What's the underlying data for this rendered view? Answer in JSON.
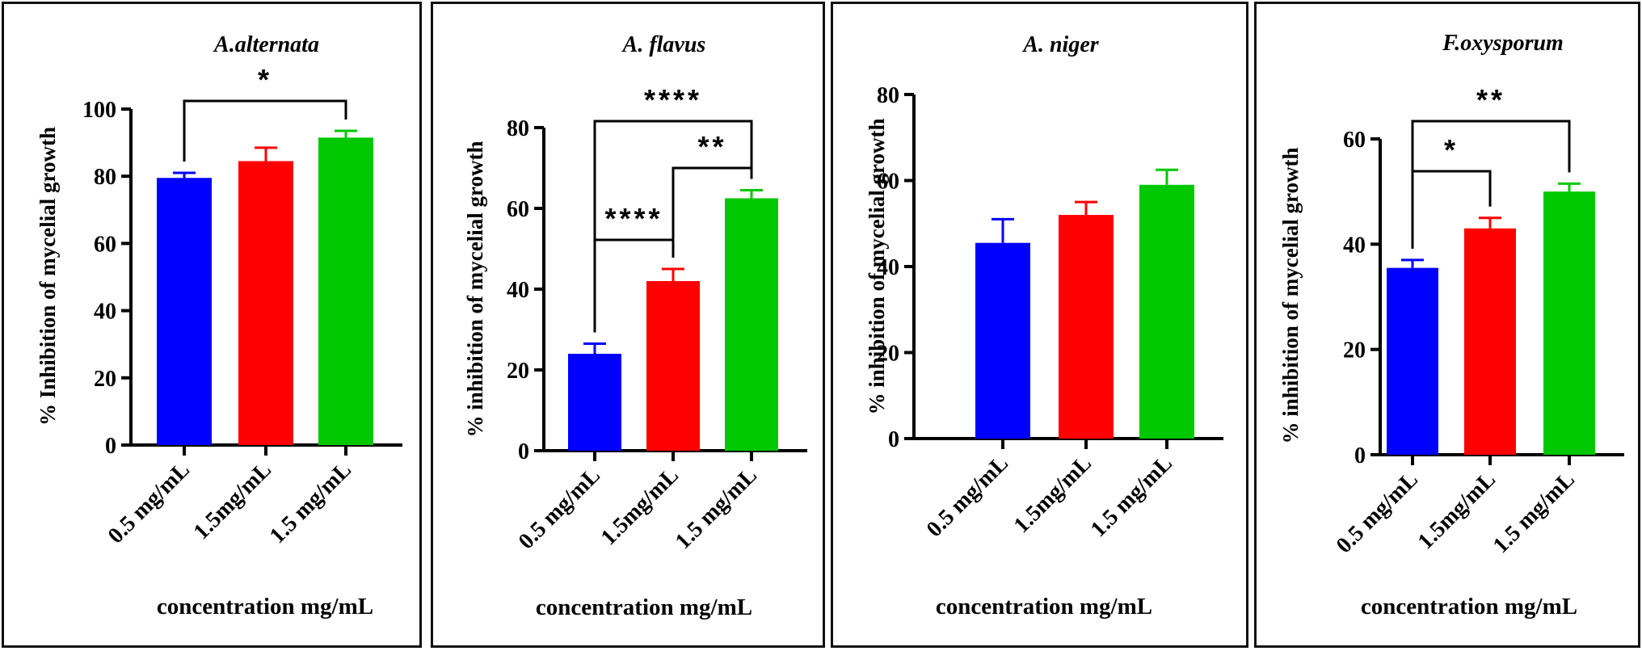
{
  "colors": {
    "blue": "#0000ff",
    "red": "#ff0000",
    "green": "#00c800",
    "axis": "#000000"
  },
  "chart_data": [
    {
      "type": "bar",
      "title": "A.alternata",
      "ylabel": "% Inhibition of mycelial growth",
      "xlabel": "concentration mg/mL",
      "categories": [
        "0.5 mg/mL",
        "1.5mg/mL",
        "1.5 mg/mL"
      ],
      "values": [
        79.5,
        84.5,
        91.5
      ],
      "errors": [
        1.5,
        4,
        2
      ],
      "ylim": [
        0,
        100
      ],
      "yticks": [
        0,
        20,
        40,
        60,
        80,
        100
      ],
      "bar_colors": [
        "#0000ff",
        "#ff0000",
        "#00c800"
      ],
      "significance": [
        {
          "from": 0,
          "to": 2,
          "label": "*"
        }
      ]
    },
    {
      "type": "bar",
      "title": "A. flavus",
      "ylabel": "% inhibition of mycelial growth",
      "xlabel": "concentration mg/mL",
      "categories": [
        "0.5 mg/mL",
        "1.5mg/mL",
        "1.5 mg/mL"
      ],
      "values": [
        24,
        42,
        62.5
      ],
      "errors": [
        2.5,
        3,
        2
      ],
      "ylim": [
        0,
        80
      ],
      "yticks": [
        0,
        20,
        40,
        60,
        80
      ],
      "bar_colors": [
        "#0000ff",
        "#ff0000",
        "#00c800"
      ],
      "significance": [
        {
          "from": 0,
          "to": 1,
          "label": "****"
        },
        {
          "from": 1,
          "to": 2,
          "label": "**"
        },
        {
          "from": 0,
          "to": 2,
          "label": "****"
        }
      ]
    },
    {
      "type": "bar",
      "title": "A. niger",
      "ylabel": "% inhibition of mycelial growth",
      "xlabel": "concentration mg/mL",
      "categories": [
        "0.5 mg/mL",
        "1.5mg/mL",
        "1.5 mg/mL"
      ],
      "values": [
        45.5,
        52,
        59
      ],
      "errors": [
        5.5,
        3,
        3.5
      ],
      "ylim": [
        0,
        80
      ],
      "yticks": [
        0,
        20,
        40,
        60,
        80
      ],
      "bar_colors": [
        "#0000ff",
        "#ff0000",
        "#00c800"
      ],
      "significance": []
    },
    {
      "type": "bar",
      "title": "F.oxysporum",
      "ylabel": "% inhibition of mycelial growth",
      "xlabel": "concentration mg/mL",
      "categories": [
        "0.5 mg/mL",
        "1.5mg/mL",
        "1.5 mg/mL"
      ],
      "values": [
        35.5,
        43,
        50
      ],
      "errors": [
        1.5,
        2,
        1.5
      ],
      "ylim": [
        0,
        60
      ],
      "yticks": [
        0,
        20,
        40,
        60
      ],
      "bar_colors": [
        "#0000ff",
        "#ff0000",
        "#00c800"
      ],
      "significance": [
        {
          "from": 0,
          "to": 1,
          "label": "*"
        },
        {
          "from": 0,
          "to": 2,
          "label": "**"
        }
      ]
    }
  ]
}
